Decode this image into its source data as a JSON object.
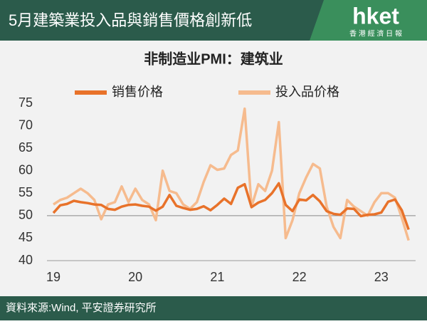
{
  "header": {
    "title": "5月建築業投入品與銷售價格創新低",
    "logo": "hket",
    "logo_subtitle": "香 港 經 濟 日 報"
  },
  "footer": {
    "source": "資料來源:Wind, 平安證券研究所"
  },
  "chart_data": {
    "type": "line",
    "title": "非制造业PMI：建筑业",
    "categories": [
      "19",
      null,
      null,
      null,
      null,
      null,
      null,
      null,
      null,
      null,
      null,
      null,
      "20",
      null,
      null,
      null,
      null,
      null,
      null,
      null,
      null,
      null,
      null,
      null,
      "21",
      null,
      null,
      null,
      null,
      null,
      null,
      null,
      null,
      null,
      null,
      null,
      "22",
      null,
      null,
      null,
      null,
      null,
      null,
      null,
      null,
      null,
      null,
      null,
      "23",
      null,
      null,
      null,
      null
    ],
    "series": [
      {
        "name": "销售价格",
        "color": "#e8722a",
        "values": [
          50.6,
          52.3,
          52.6,
          53.3,
          53.0,
          52.8,
          52.5,
          52.4,
          51.5,
          51.3,
          52.0,
          52.4,
          52.5,
          52.2,
          52.0,
          51.1,
          52.0,
          54.6,
          52.2,
          51.7,
          51.3,
          51.5,
          52.1,
          51.2,
          52.4,
          53.8,
          52.6,
          56.2,
          57.0,
          51.9,
          52.9,
          53.5,
          55.0,
          57.2,
          52.4,
          51.0,
          53.6,
          53.4,
          54.6,
          53.2,
          51.0,
          50.4,
          50.2,
          51.6,
          51.5,
          49.9,
          50.2,
          50.3,
          50.7,
          53.1,
          53.6,
          51.2,
          46.9
        ]
      },
      {
        "name": "投入品价格",
        "color": "#f6bb8e",
        "values": [
          52.5,
          53.5,
          54.0,
          55.0,
          56.0,
          55.0,
          53.5,
          49.2,
          52.5,
          53.0,
          56.5,
          53.0,
          56.0,
          53.5,
          52.5,
          49.0,
          60.0,
          55.5,
          55.0,
          52.5,
          51.5,
          53.0,
          57.5,
          61.2,
          60.2,
          60.5,
          63.5,
          64.5,
          73.8,
          52.0,
          57.0,
          55.5,
          60.0,
          70.8,
          45.0,
          49.0,
          55.0,
          58.5,
          61.5,
          60.5,
          52.0,
          47.5,
          45.0,
          53.5,
          52.0,
          51.0,
          50.0,
          53.0,
          55.0,
          55.0,
          54.0,
          49.5,
          44.5
        ]
      }
    ],
    "ylim": [
      40,
      75
    ],
    "yticks": [
      40,
      45,
      50,
      55,
      60,
      65,
      70,
      75
    ],
    "hline": 50,
    "grid": false
  }
}
